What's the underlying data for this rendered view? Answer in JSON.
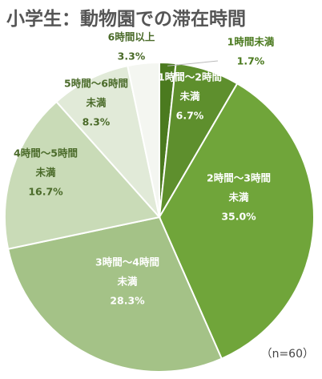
{
  "title": "小学生：動物園での滞在時間",
  "note": "（n=60）",
  "chart_data": {
    "type": "pie",
    "title": "小学生：動物園での滞在時間",
    "sample_size": "n=60",
    "slices": [
      {
        "label_lines": [
          "1時間未満"
        ],
        "value": 1.7,
        "value_label": "1.7%",
        "color": "#4b7a1f"
      },
      {
        "label_lines": [
          "1時間～2時間",
          "未満"
        ],
        "value": 6.7,
        "value_label": "6.7%",
        "color": "#5e8f2d"
      },
      {
        "label_lines": [
          "2時間～3時間",
          "未満"
        ],
        "value": 35.0,
        "value_label": "35.0%",
        "color": "#70a53a"
      },
      {
        "label_lines": [
          "3時間～4時間",
          "未満"
        ],
        "value": 28.3,
        "value_label": "28.3%",
        "color": "#a4c287"
      },
      {
        "label_lines": [
          "4時間～5時間",
          "未満"
        ],
        "value": 16.7,
        "value_label": "16.7%",
        "color": "#c9dbb7"
      },
      {
        "label_lines": [
          "5時間～6時間",
          "未満"
        ],
        "value": 8.3,
        "value_label": "8.3%",
        "color": "#e1ead8"
      },
      {
        "label_lines": [
          "6時間以上"
        ],
        "value": 3.3,
        "value_label": "3.3%",
        "color": "#f4f6f1"
      }
    ]
  }
}
